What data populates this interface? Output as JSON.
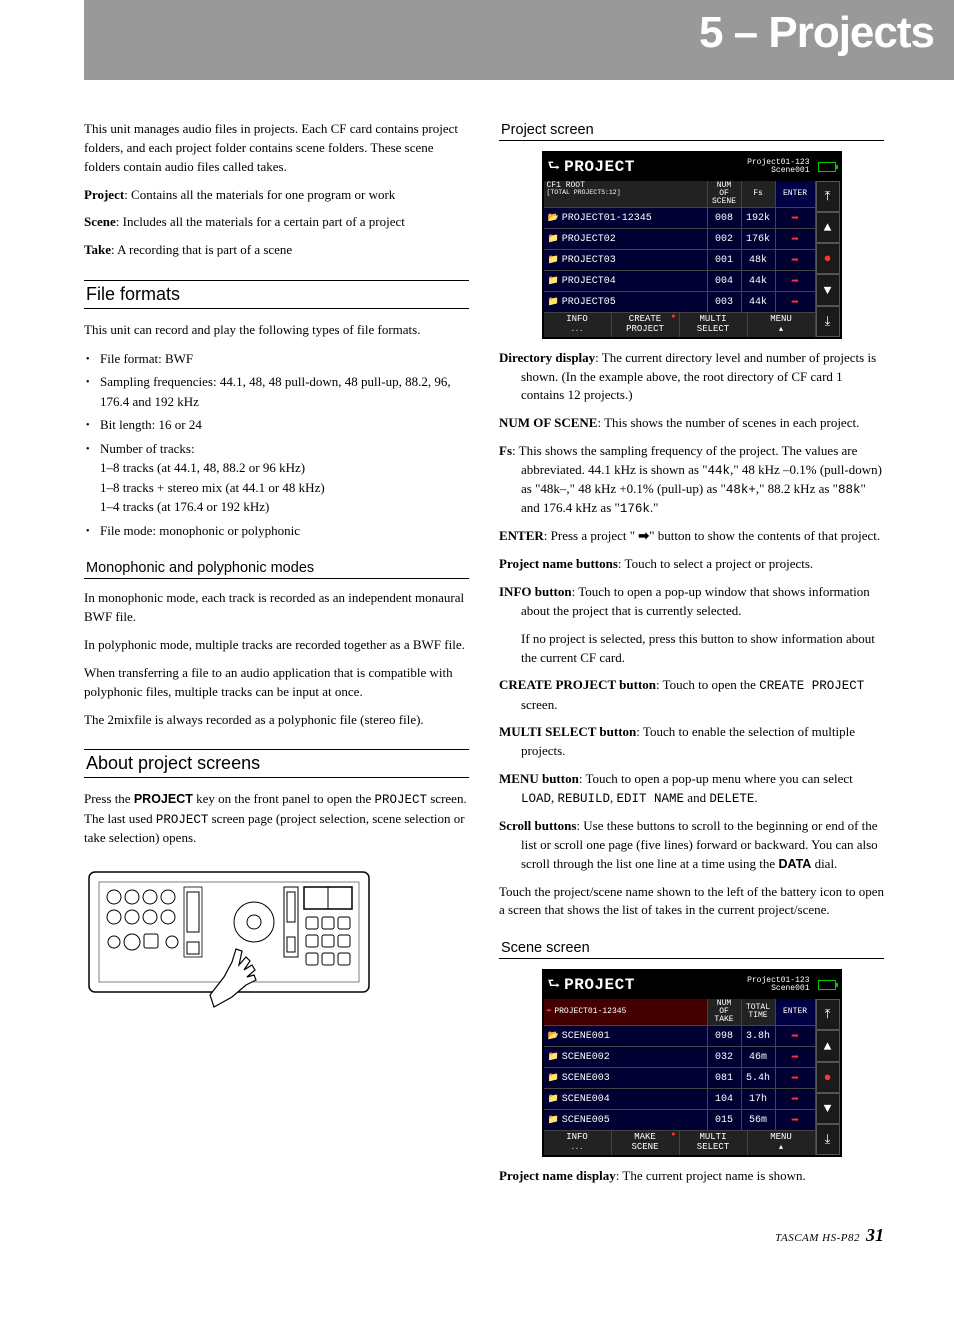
{
  "chapter": "5 – Projects",
  "intro": {
    "p1": "This unit manages audio files in projects. Each CF card contains project folders, and each project folder contains scene folders. These scene folders contain audio files called takes.",
    "def_project_b": "Project",
    "def_project": ": Contains all the materials for one program or work",
    "def_scene_b": "Scene",
    "def_scene": ": Includes all the materials for a certain part of a project",
    "def_take_b": "Take",
    "def_take": ": A recording that is part of a scene"
  },
  "ff": {
    "heading": "File formats",
    "intro": "This unit can record and play the following types of file formats.",
    "items": [
      "File format: BWF",
      "Sampling frequencies: 44.1, 48, 48 pull-down, 48 pull-up, 88.2, 96, 176.4 and 192 kHz",
      "Bit length: 16 or 24",
      "Number of tracks:\n1–8 tracks (at 44.1, 48, 88.2 or 96 kHz)\n1–8 tracks + stereo mix (at 44.1 or 48 kHz)\n1–4 tracks (at 176.4 or 192 kHz)",
      "File mode: monophonic or polyphonic"
    ]
  },
  "modes": {
    "heading": "Monophonic and polyphonic modes",
    "p1": "In monophonic mode, each track is recorded as an independent monaural BWF file.",
    "p2": "In polyphonic mode, multiple tracks are recorded together as a BWF file.",
    "p3": "When transferring a file to an audio application that is compatible with polyphonic files, multiple tracks can be input at once.",
    "p4": "The 2mixfile is always recorded as a polyphonic file (stereo file)."
  },
  "aps": {
    "heading": "About project screens",
    "p1a": "Press the ",
    "p1b_sans": "PROJECT",
    "p1c": " key on the front panel to open the ",
    "p1d_mono": "PROJECT",
    "p1e": " screen. The last used ",
    "p1f_mono": "PROJECT",
    "p1g": " screen page (project selection, scene selection or take selection) opens."
  },
  "proj_screen": {
    "heading": "Project screen",
    "title": "PROJECT",
    "sub1": "Project01-123",
    "sub2": "Scene001",
    "hdr_name": "CF1 ROOT",
    "hdr_sub": "[TOTAL PROJECTS:12]",
    "hdr_a": "NUM\nOF\nSCENE",
    "hdr_b": "Fs",
    "hdr_ent": "ENTER",
    "rows": [
      {
        "name": "PROJECT01-12345",
        "a": "008",
        "b": "192k"
      },
      {
        "name": "PROJECT02",
        "a": "002",
        "b": "176k"
      },
      {
        "name": "PROJECT03",
        "a": "001",
        "b": "48k"
      },
      {
        "name": "PROJECT04",
        "a": "004",
        "b": "44k"
      },
      {
        "name": "PROJECT05",
        "a": "003",
        "b": "44k"
      }
    ],
    "foot": [
      "INFO",
      "CREATE\nPROJECT",
      "MULTI\nSELECT",
      "MENU"
    ],
    "side": [
      "⤒",
      "▲",
      "●",
      "▼",
      "⤓"
    ]
  },
  "scene_screen": {
    "heading": "Scene screen",
    "title": "PROJECT",
    "sub1": "Project01-123",
    "sub2": "Scene001",
    "hdr_name": "PROJECT01-12345",
    "hdr_a": "NUM\nOF\nTAKE",
    "hdr_b": "TOTAL\nTIME",
    "hdr_ent": "ENTER",
    "rows": [
      {
        "name": "SCENE001",
        "a": "098",
        "b": "3.8h"
      },
      {
        "name": "SCENE002",
        "a": "032",
        "b": "46m"
      },
      {
        "name": "SCENE003",
        "a": "081",
        "b": "5.4h"
      },
      {
        "name": "SCENE004",
        "a": "104",
        "b": "17h"
      },
      {
        "name": "SCENE005",
        "a": "015",
        "b": "56m"
      }
    ],
    "foot": [
      "INFO",
      "MAKE\nSCENE",
      "MULTI\nSELECT",
      "MENU"
    ],
    "side": [
      "⤒",
      "▲",
      "●",
      "▼",
      "⤓"
    ]
  },
  "defs": {
    "dirdisp_b": "Directory display",
    "dirdisp": ": The current directory level and number of projects is shown. (In the example above, the root directory of CF card 1 contains 12 projects.)",
    "numscene_b": "NUM OF SCENE",
    "numscene": ": This shows the number of scenes in each project.",
    "fs_b": "Fs",
    "fs_a": ": This shows the sampling frequency of the project. The values are abbreviated. 44.1 kHz is shown as \"",
    "fs_m1": "44k",
    "fs_b2": ",\" 48 kHz –0.1% (pull-down) as \"48k–,\" 48 kHz +0.1% (pull-up) as \"",
    "fs_m2": "48k+",
    "fs_c": ",\" 88.2 kHz as \"",
    "fs_m3": "88k",
    "fs_d": "\" and 176.4 kHz as \"",
    "fs_m4": "176k",
    "fs_e": ".\"",
    "enter_b": "ENTER",
    "enter_a": ": Press a project \" ",
    "enter_bt": "➡",
    "enter_c": "\" button to show the contents of that project.",
    "pnb_b": "Project name buttons",
    "pnb": ": Touch to select a project or projects.",
    "info_b": "INFO button",
    "info": ": Touch to open a pop-up window that shows information about the project that is currently selected.",
    "info2": "If no project is selected, press this button to show information about the current CF card.",
    "create_b": "CREATE PROJECT button",
    "create_a": ": Touch to open the ",
    "create_m": "CREATE PROJECT",
    "create_c": " screen.",
    "multi_b": "MULTI SELECT button",
    "multi": ": Touch to enable the selection of multiple projects.",
    "menu_b": "MENU button",
    "menu_a": ": Touch to open a pop-up menu where you can select ",
    "menu_m1": "LOAD",
    "menu_m2": "REBUILD",
    "menu_m3": "EDIT NAME",
    "menu_m4": "DELETE",
    "scroll_b": "Scroll buttons",
    "scroll_a": ": Use these buttons to scroll to the beginning or end of the list or scroll one page (five lines) forward or backward. You can also scroll through the list one line at a time using the ",
    "scroll_sans": "DATA",
    "scroll_c": " dial.",
    "touchp": "Touch the project/scene name shown to the left of the battery icon to open a screen that shows the list of takes in the current project/scene.",
    "pnd_b": "Project name display",
    "pnd": ": The current project name is shown."
  },
  "footer": {
    "label": "TASCAM  HS-P82",
    "page": "31"
  }
}
